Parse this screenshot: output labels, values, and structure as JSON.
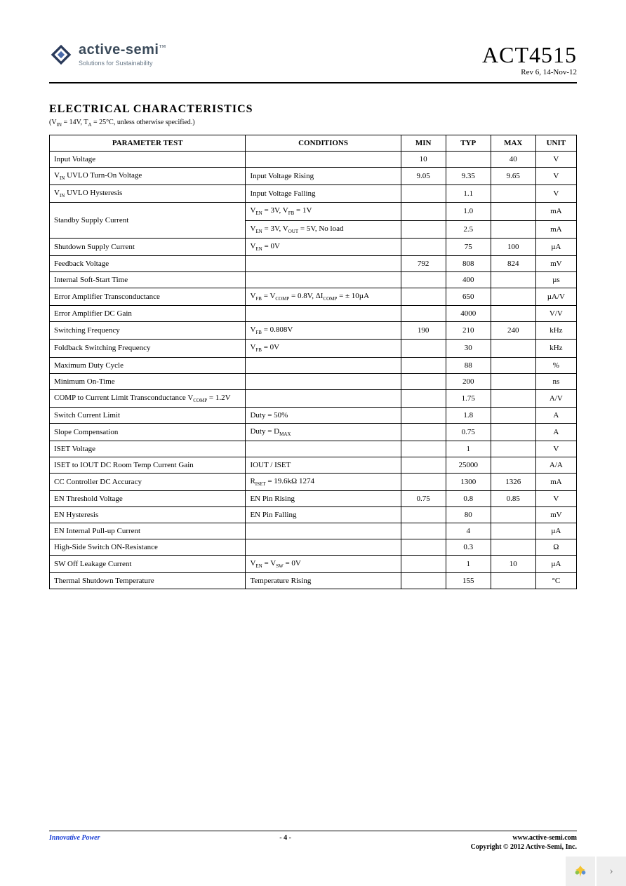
{
  "header": {
    "logo_text": "active-semi",
    "logo_tagline": "Solutions for Sustainability",
    "part_number": "ACT4515",
    "revision": "Rev 6, 14-Nov-12"
  },
  "section": {
    "title": "ELECTRICAL CHARACTERISTICS",
    "note_prefix": "(V",
    "note_sub1": "IN",
    "note_mid": " = 14V, T",
    "note_sub2": "A",
    "note_suffix": " = 25°C, unless otherwise specified.)"
  },
  "table": {
    "headers": {
      "param": "PARAMETER TEST",
      "cond": "CONDITIONS",
      "min": "MIN",
      "typ": "TYP",
      "max": "MAX",
      "unit": "UNIT"
    },
    "rows": [
      {
        "param": "Input Voltage",
        "cond": "",
        "min": "10",
        "typ": "",
        "max": "40",
        "unit": "V"
      },
      {
        "param_html": "V<span class='sub'>IN</span> UVLO Turn-On Voltage",
        "cond": "Input Voltage Rising",
        "min": "9.05",
        "typ": "9.35",
        "max": "9.65",
        "unit": "V"
      },
      {
        "param_html": "V<span class='sub'>IN</span> UVLO Hysteresis",
        "cond": "Input Voltage Falling",
        "min": "",
        "typ": "1.1",
        "max": "",
        "unit": "V"
      },
      {
        "param": "Standby Supply Current",
        "rowspan": 2,
        "cond_html": "V<span class='sub'>EN</span> = 3V, V<span class='sub'>FB</span> = 1V",
        "min": "",
        "typ": "1.0",
        "max": "",
        "unit": "mA"
      },
      {
        "skip_param": true,
        "cond_html": "V<span class='sub'>EN</span> = 3V, V<span class='sub'>OUT</span> = 5V, No load",
        "min": "",
        "typ": "2.5",
        "max": "",
        "unit": "mA"
      },
      {
        "param": "Shutdown Supply Current",
        "cond_html": "V<span class='sub'>EN</span> = 0V",
        "min": "",
        "typ": "75",
        "max": "100",
        "unit": "µA"
      },
      {
        "param": "Feedback Voltage",
        "cond": "",
        "min": "792",
        "typ": "808",
        "max": "824",
        "unit": "mV"
      },
      {
        "param": "Internal Soft-Start Time",
        "cond": "",
        "min": "",
        "typ": "400",
        "max": "",
        "unit": "µs"
      },
      {
        "param": "Error Amplifier Transconductance",
        "cond_html": "V<span class='sub'>FB</span> = V<span class='sub'>COMP</span> = 0.8V, ΔI<span class='sub'>COMP</span> = ± 10µA",
        "min": "",
        "typ": "650",
        "max": "",
        "unit": "µA/V"
      },
      {
        "param": "Error Amplifier DC Gain",
        "cond": "",
        "min": "",
        "typ": "4000",
        "max": "",
        "unit": "V/V"
      },
      {
        "param": "Switching Frequency",
        "cond_html": "V<span class='sub'>FB</span> = 0.808V",
        "min": "190",
        "typ": "210",
        "max": "240",
        "unit": "kHz"
      },
      {
        "param": "Foldback Switching Frequency",
        "cond_html": "V<span class='sub'>FB</span> = 0V",
        "min": "",
        "typ": "30",
        "max": "",
        "unit": "kHz"
      },
      {
        "param": "Maximum Duty Cycle",
        "cond": "",
        "min": "",
        "typ": "88",
        "max": "",
        "unit": "%"
      },
      {
        "param": "Minimum On-Time",
        "cond": "",
        "min": "",
        "typ": "200",
        "max": "",
        "unit": "ns"
      },
      {
        "param_html": "COMP to Current Limit Transconductance  V<span class='sub'>COMP</span> = 1.2V",
        "cond": "",
        "min": "",
        "typ": "1.75",
        "max": "",
        "unit": "A/V"
      },
      {
        "param": "Switch Current Limit",
        "cond": "Duty = 50%",
        "min": "",
        "typ": "1.8",
        "max": "",
        "unit": "A"
      },
      {
        "param": "Slope Compensation",
        "cond_html": "Duty = D<span class='sub'>MAX</span>",
        "min": "",
        "typ": "0.75",
        "max": "",
        "unit": "A"
      },
      {
        "param": "ISET Voltage",
        "cond": "",
        "min": "",
        "typ": "1",
        "max": "",
        "unit": "V"
      },
      {
        "param": "ISET to IOUT DC Room Temp Current Gain",
        "cond": "IOUT / ISET",
        "min": "",
        "typ": "25000",
        "max": "",
        "unit": "A/A"
      },
      {
        "param": "CC Controller DC Accuracy",
        "cond_html": "R<span class='sub'>ISET</span> = 19.6kΩ 1274",
        "min": "",
        "typ": "1300",
        "max": "1326",
        "unit": "mA"
      },
      {
        "param": "EN Threshold Voltage",
        "cond": "EN Pin Rising",
        "min": "0.75",
        "typ": "0.8",
        "max": "0.85",
        "unit": "V"
      },
      {
        "param": "EN Hysteresis",
        "cond": "EN Pin Falling",
        "min": "",
        "typ": "80",
        "max": "",
        "unit": "mV"
      },
      {
        "param": "EN Internal Pull-up Current",
        "cond": "",
        "min": "",
        "typ": "4",
        "max": "",
        "unit": "µA"
      },
      {
        "param": "High-Side Switch ON-Resistance",
        "cond": "",
        "min": "",
        "typ": "0.3",
        "max": "",
        "unit": "Ω"
      },
      {
        "param": "SW Off Leakage Current",
        "cond_html": "V<span class='sub'>EN</span> = V<span class='sub'>SW</span> = 0V",
        "min": "",
        "typ": "1",
        "max": "10",
        "unit": "µA"
      },
      {
        "param": "Thermal Shutdown Temperature",
        "cond": "Temperature Rising",
        "min": "",
        "typ": "155",
        "max": "",
        "unit": "°C"
      }
    ]
  },
  "footer": {
    "left": "Innovative Power",
    "center": "- 4 -",
    "right_url": "www.active-semi.com",
    "right_copyright": "Copyright © 2012 Active-Semi, Inc."
  },
  "colors": {
    "accent_blue": "#1a3fd6",
    "logo_blue": "#3a4a5a",
    "border": "#000000",
    "page_bg": "#ffffff"
  }
}
